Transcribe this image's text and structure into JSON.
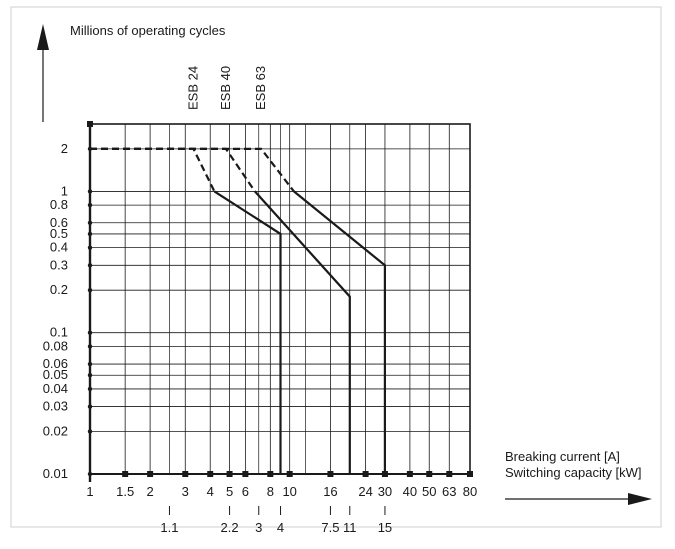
{
  "chart_data": {
    "type": "line",
    "ylabel": "Millions of operating cycles",
    "xlabel_lines": [
      "Breaking current [A]",
      "Switching capacity [kW]"
    ],
    "x_scale": "log",
    "y_scale": "log",
    "xlim": [
      1,
      80
    ],
    "ylim": [
      0.01,
      3
    ],
    "x_ticks": [
      1,
      1.5,
      2,
      3,
      4,
      5,
      6,
      8,
      10,
      16,
      24,
      30,
      40,
      50,
      63,
      80
    ],
    "x_tick_labels": [
      "1",
      "1.5",
      "2",
      "3",
      "4",
      "5",
      "6",
      "8",
      "10",
      "16",
      "24",
      "30",
      "40",
      "50",
      "63",
      "80"
    ],
    "x_minor_gridlines": [
      2.5,
      7,
      9,
      12,
      20
    ],
    "secondary_x_ticks": [
      {
        "x": 2.5,
        "label": "1.1"
      },
      {
        "x": 5,
        "label": "2.2"
      },
      {
        "x": 7,
        "label": "3"
      },
      {
        "x": 9,
        "label": "4"
      },
      {
        "x": 16,
        "label": "7.5"
      },
      {
        "x": 20,
        "label": "11"
      },
      {
        "x": 30,
        "label": "15"
      }
    ],
    "y_ticks": [
      0.01,
      0.02,
      0.03,
      0.04,
      0.05,
      0.06,
      0.08,
      0.1,
      0.2,
      0.3,
      0.4,
      0.5,
      0.6,
      0.8,
      1,
      2
    ],
    "y_tick_labels": [
      "0.01",
      "0.02",
      "0.03",
      "0.04",
      "0.05",
      "0.06",
      "0.08",
      "0.1",
      "0.2",
      "0.3",
      "0.4",
      "0.5",
      "0.6",
      "0.8",
      "1",
      "2"
    ],
    "grid": true,
    "series": [
      {
        "name": "ESB 24",
        "dashed": [
          [
            1,
            2
          ],
          [
            3.3,
            2
          ],
          [
            4.2,
            1
          ]
        ],
        "solid": [
          [
            4.2,
            1
          ],
          [
            9,
            0.5
          ],
          [
            9,
            0.01
          ]
        ]
      },
      {
        "name": "ESB 40",
        "dashed": [
          [
            1,
            2
          ],
          [
            4.8,
            2
          ],
          [
            6.7,
            1
          ]
        ],
        "solid": [
          [
            6.7,
            1
          ],
          [
            20,
            0.18
          ],
          [
            20,
            0.01
          ]
        ]
      },
      {
        "name": "ESB 63",
        "dashed": [
          [
            1,
            2
          ],
          [
            7.2,
            2
          ],
          [
            10.5,
            1
          ]
        ],
        "solid": [
          [
            10.5,
            1
          ],
          [
            30,
            0.3
          ],
          [
            30,
            0.01
          ]
        ]
      }
    ],
    "series_label_x": [
      3.3,
      4.8,
      7.2
    ]
  }
}
